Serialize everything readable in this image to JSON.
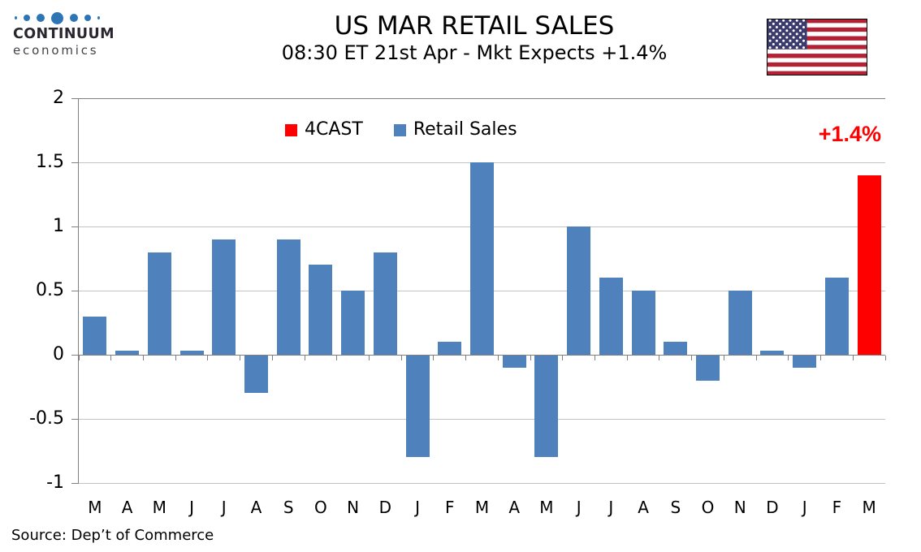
{
  "header": {
    "logo": {
      "icon": "continuum-dots-logo",
      "brand": "CONTINUUM",
      "subbrand": "economics"
    },
    "title": "US MAR RETAIL SALES",
    "subtitle": "08:30 ET 21st Apr - Mkt Expects +1.4%",
    "flag": "us-flag"
  },
  "chart_data": {
    "type": "bar",
    "title": "US MAR RETAIL SALES",
    "categories": [
      "M",
      "A",
      "M",
      "J",
      "J",
      "A",
      "S",
      "O",
      "N",
      "D",
      "J",
      "F",
      "M",
      "A",
      "M",
      "J",
      "J",
      "A",
      "S",
      "O",
      "N",
      "D",
      "J",
      "F",
      "M"
    ],
    "series": [
      {
        "name": "4CAST",
        "color": "#ff0000",
        "values": [
          null,
          null,
          null,
          null,
          null,
          null,
          null,
          null,
          null,
          null,
          null,
          null,
          null,
          null,
          null,
          null,
          null,
          null,
          null,
          null,
          null,
          null,
          null,
          null,
          1.4
        ]
      },
      {
        "name": "Retail Sales",
        "color": "#4f81bd",
        "values": [
          0.3,
          0.03,
          0.8,
          0.03,
          0.9,
          -0.3,
          0.9,
          0.7,
          0.5,
          0.8,
          -0.8,
          0.1,
          1.5,
          -0.1,
          -0.8,
          1.0,
          0.6,
          0.5,
          0.1,
          -0.2,
          0.5,
          0.03,
          -0.1,
          0.6,
          null
        ]
      }
    ],
    "ylim": [
      -1,
      2
    ],
    "yticks": [
      "2",
      "1.5",
      "1",
      "0.5",
      "0",
      "-0.5",
      "-1"
    ],
    "xlabel": "",
    "ylabel": "",
    "grid": true,
    "legend_position": "top-center",
    "annotation": {
      "text": "+1.4%",
      "color": "#ff0000"
    }
  },
  "source_note": "Source: Dep’t of Commerce",
  "colors": {
    "bar_blue": "#4f81bd",
    "forecast_red": "#ff0000",
    "logo_blue": "#2e75b5",
    "flag_red": "#b22234",
    "flag_blue": "#3c3b6e",
    "gridline": "#c3c3c3",
    "axis": "#7f7f7f"
  }
}
